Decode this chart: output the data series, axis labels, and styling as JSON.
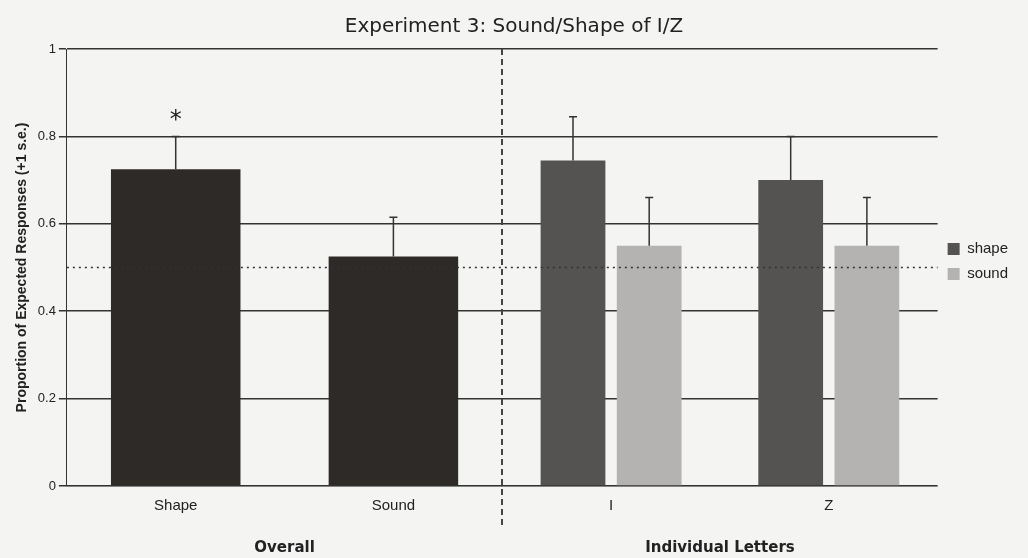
{
  "chart_data": {
    "type": "bar",
    "title": "Experiment 3: Sound/Shape of I/Z",
    "ylabel": "Proportion of Expected Responses (+1 s.e.)",
    "categories": [
      "Shape",
      "Sound",
      "I",
      "Z"
    ],
    "series": [
      {
        "color": "#2e2a28",
        "values": [
          0.725,
          0.525,
          null,
          null
        ],
        "errors": [
          [
            0.725,
            0.8
          ],
          [
            0.525,
            0.615
          ],
          null,
          null
        ]
      },
      {
        "name": "shape",
        "color": "#555352",
        "values": [
          null,
          null,
          0.745,
          0.7
        ],
        "errors": [
          null,
          null,
          [
            0.745,
            0.845
          ],
          [
            0.7,
            0.8
          ]
        ]
      },
      {
        "name": "sound",
        "color": "#b5b3b2",
        "values": [
          null,
          null,
          0.55,
          0.55
        ],
        "errors": [
          null,
          null,
          [
            0.55,
            0.66
          ],
          [
            0.55,
            0.66
          ]
        ]
      }
    ],
    "ylim": [
      0,
      1
    ],
    "yticks": [
      0,
      0.2,
      0.4,
      0.6,
      0.8,
      1
    ],
    "grid": "y",
    "legend": "right",
    "ref_lines": [
      {
        "axis": "y",
        "value": 0.5,
        "color": "#333333",
        "line_style": "dotted"
      }
    ],
    "annotations": [
      {
        "text": "*",
        "x": "Shape",
        "y": 0.8
      },
      "Overall",
      "Individual Letters"
    ]
  }
}
